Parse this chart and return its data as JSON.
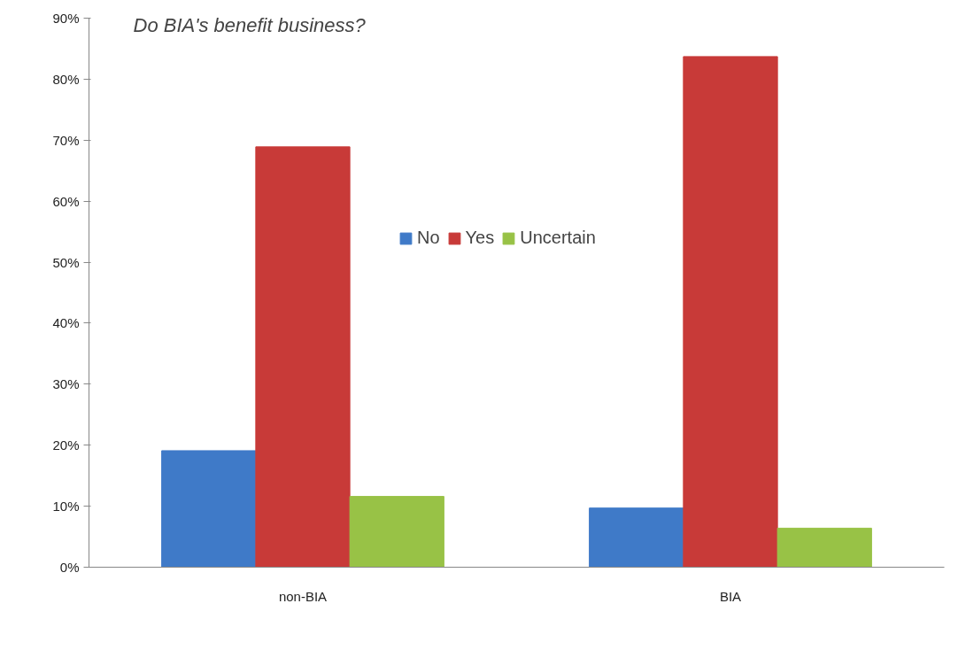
{
  "chart_data": {
    "type": "bar",
    "title": "Do BIA's benefit  business?",
    "categories": [
      "non-BIA",
      "BIA"
    ],
    "series": [
      {
        "name": "No",
        "color": "#3f7ac8",
        "values": [
          19.1,
          9.7
        ]
      },
      {
        "name": "Yes",
        "color": "#c83a38",
        "values": [
          68.9,
          83.7
        ]
      },
      {
        "name": "Uncertain",
        "color": "#98c246",
        "values": [
          11.6,
          6.4
        ]
      }
    ],
    "ylim": [
      0,
      90
    ],
    "yticks": [
      {
        "value": 0,
        "label": "0%"
      },
      {
        "value": 10,
        "label": "10%"
      },
      {
        "value": 20,
        "label": "20%"
      },
      {
        "value": 30,
        "label": "30%"
      },
      {
        "value": 40,
        "label": "40%"
      },
      {
        "value": 50,
        "label": "50%"
      },
      {
        "value": 60,
        "label": "60%"
      },
      {
        "value": 70,
        "label": "70%"
      },
      {
        "value": 80,
        "label": "80%"
      },
      {
        "value": 90,
        "label": "90%"
      }
    ],
    "grid": false,
    "legend": "top"
  }
}
